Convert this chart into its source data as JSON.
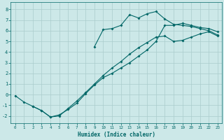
{
  "title": "",
  "xlabel": "Humidex (Indice chaleur)",
  "bg_color": "#cce8e8",
  "line_color": "#006666",
  "grid_color": "#aacccc",
  "xlim": [
    -0.5,
    23.5
  ],
  "ylim": [
    -2.7,
    8.7
  ],
  "xticks": [
    0,
    1,
    2,
    3,
    4,
    5,
    6,
    7,
    8,
    9,
    10,
    11,
    12,
    13,
    14,
    15,
    16,
    17,
    18,
    19,
    20,
    21,
    22,
    23
  ],
  "yticks": [
    -2,
    -1,
    0,
    1,
    2,
    3,
    4,
    5,
    6,
    7,
    8
  ],
  "line1_x": [
    0,
    1,
    2,
    3,
    4,
    5,
    6,
    7,
    8,
    9,
    10,
    11,
    12,
    13,
    14,
    15,
    16,
    17,
    18,
    19,
    20,
    21,
    22,
    23
  ],
  "line1_y": [
    -0.1,
    -0.7,
    -1.1,
    -1.5,
    -2.1,
    -2.0,
    -1.3,
    -0.6,
    0.2,
    1.0,
    1.8,
    2.5,
    3.1,
    3.8,
    4.4,
    4.9,
    5.4,
    5.5,
    5.0,
    5.1,
    5.4,
    5.7,
    5.9,
    5.5
  ],
  "line2_x": [
    2,
    3,
    4,
    5,
    6,
    7,
    8,
    9,
    10,
    11,
    12,
    13,
    14,
    15,
    16,
    17,
    18,
    19,
    20,
    21,
    22,
    23
  ],
  "line2_y": [
    -1.1,
    -1.5,
    -2.1,
    -1.9,
    -1.4,
    -0.8,
    0.1,
    0.9,
    1.6,
    2.0,
    2.5,
    3.0,
    3.6,
    4.2,
    5.0,
    6.5,
    6.5,
    6.7,
    6.5,
    6.3,
    6.2,
    5.9
  ],
  "line3_x": [
    9,
    10,
    11,
    12,
    13,
    14,
    15,
    16,
    17,
    18,
    19,
    20,
    21,
    22,
    23
  ],
  "line3_y": [
    4.5,
    6.1,
    6.2,
    6.5,
    7.5,
    7.2,
    7.6,
    7.8,
    7.1,
    6.6,
    6.5,
    6.4,
    6.2,
    6.0,
    5.6
  ]
}
